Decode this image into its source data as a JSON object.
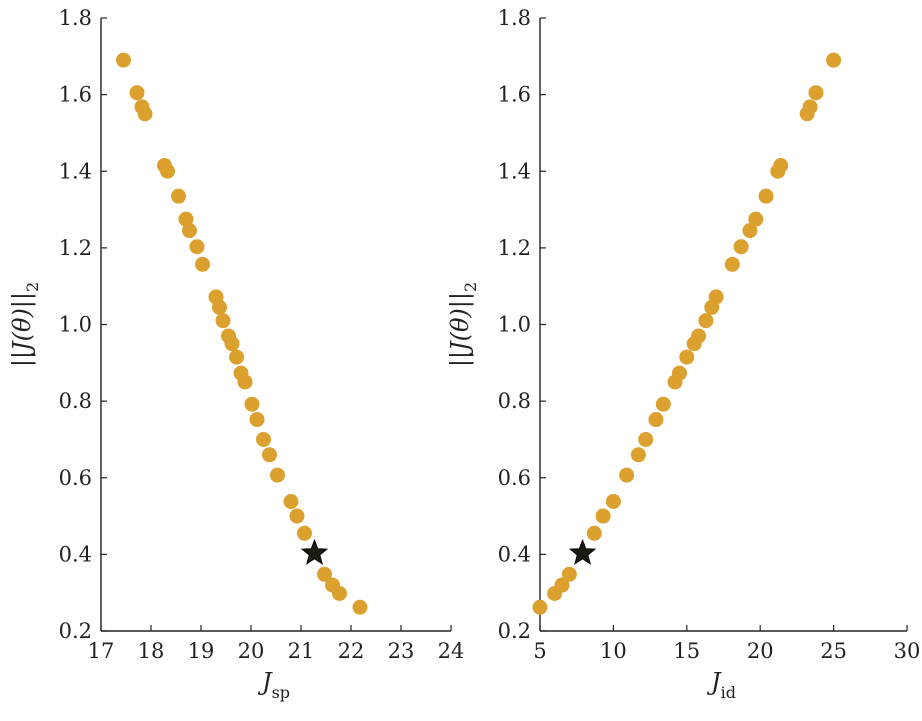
{
  "chart_data": [
    {
      "type": "scatter",
      "xlabel": "J",
      "xlabel_sub": "sp",
      "ylabel": "||J(θ)||",
      "ylabel_sub": "2",
      "xlim": [
        17,
        24
      ],
      "ylim": [
        0.2,
        1.8
      ],
      "xticks": [
        "17",
        "18",
        "19",
        "20",
        "21",
        "22",
        "23",
        "24"
      ],
      "yticks": [
        "0.2",
        "0.4",
        "0.6",
        "0.8",
        "1.0",
        "1.2",
        "1.4",
        "1.6",
        "1.8"
      ],
      "grid": false,
      "marker_color": "#DBA02E",
      "highlight_color": "#1C1A12",
      "points": [
        [
          17.45,
          1.69
        ],
        [
          17.72,
          1.605
        ],
        [
          17.82,
          1.568
        ],
        [
          17.88,
          1.55
        ],
        [
          18.27,
          1.415
        ],
        [
          18.33,
          1.4
        ],
        [
          18.55,
          1.335
        ],
        [
          18.7,
          1.275
        ],
        [
          18.77,
          1.245
        ],
        [
          18.92,
          1.203
        ],
        [
          19.03,
          1.157
        ],
        [
          19.3,
          1.072
        ],
        [
          19.37,
          1.045
        ],
        [
          19.44,
          1.01
        ],
        [
          19.55,
          0.97
        ],
        [
          19.62,
          0.95
        ],
        [
          19.71,
          0.915
        ],
        [
          19.8,
          0.873
        ],
        [
          19.88,
          0.85
        ],
        [
          20.02,
          0.792
        ],
        [
          20.12,
          0.752
        ],
        [
          20.25,
          0.7
        ],
        [
          20.37,
          0.66
        ],
        [
          20.53,
          0.607
        ],
        [
          20.8,
          0.538
        ],
        [
          20.92,
          0.5
        ],
        [
          21.07,
          0.455
        ],
        [
          21.47,
          0.348
        ],
        [
          21.63,
          0.32
        ],
        [
          21.77,
          0.298
        ],
        [
          22.18,
          0.262
        ]
      ],
      "highlight": [
        21.27,
        0.403
      ]
    },
    {
      "type": "scatter",
      "xlabel": "J",
      "xlabel_sub": "id",
      "ylabel": "||J(θ)||",
      "ylabel_sub": "2",
      "xlim": [
        5,
        30
      ],
      "ylim": [
        0.2,
        1.8
      ],
      "xticks": [
        "5",
        "10",
        "15",
        "20",
        "25",
        "30"
      ],
      "yticks": [
        "0.2",
        "0.4",
        "0.6",
        "0.8",
        "1.0",
        "1.2",
        "1.4",
        "1.6",
        "1.8"
      ],
      "grid": false,
      "marker_color": "#DBA02E",
      "highlight_color": "#1C1A12",
      "points": [
        [
          5.0,
          0.262
        ],
        [
          6.0,
          0.298
        ],
        [
          6.5,
          0.32
        ],
        [
          7.0,
          0.348
        ],
        [
          8.7,
          0.455
        ],
        [
          9.3,
          0.5
        ],
        [
          10.0,
          0.538
        ],
        [
          10.9,
          0.607
        ],
        [
          11.7,
          0.66
        ],
        [
          12.2,
          0.7
        ],
        [
          12.9,
          0.752
        ],
        [
          13.4,
          0.792
        ],
        [
          14.2,
          0.85
        ],
        [
          14.5,
          0.873
        ],
        [
          15.0,
          0.915
        ],
        [
          15.5,
          0.95
        ],
        [
          15.8,
          0.97
        ],
        [
          16.3,
          1.01
        ],
        [
          16.7,
          1.045
        ],
        [
          17.0,
          1.072
        ],
        [
          18.1,
          1.157
        ],
        [
          18.7,
          1.203
        ],
        [
          19.3,
          1.245
        ],
        [
          19.7,
          1.275
        ],
        [
          20.4,
          1.335
        ],
        [
          21.2,
          1.4
        ],
        [
          21.4,
          1.415
        ],
        [
          23.2,
          1.55
        ],
        [
          23.4,
          1.568
        ],
        [
          23.8,
          1.605
        ],
        [
          25.0,
          1.69
        ]
      ],
      "highlight": [
        7.9,
        0.403
      ]
    }
  ]
}
